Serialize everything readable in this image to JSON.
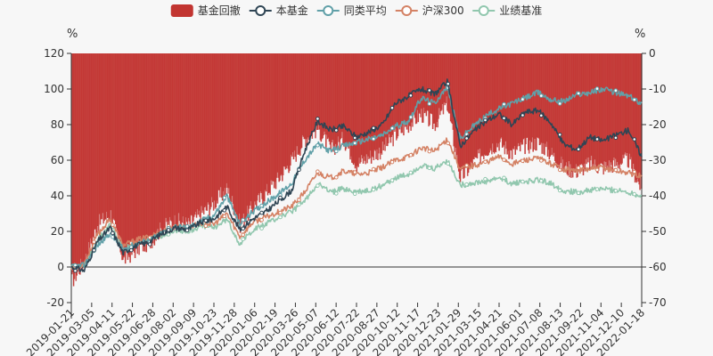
{
  "chart_data": {
    "type": "line",
    "title": "",
    "left_axis": {
      "unit": "%",
      "min": -20,
      "max": 120,
      "ticks": [
        -20,
        0,
        20,
        40,
        60,
        80,
        100,
        120
      ]
    },
    "right_axis": {
      "unit": "%",
      "min": -70,
      "max": 0,
      "ticks": [
        -70,
        -60,
        -50,
        -40,
        -30,
        -20,
        -10,
        0
      ]
    },
    "legend": [
      {
        "name": "基金回撤",
        "color": "#c23531",
        "shape": "rect"
      },
      {
        "name": "本基金",
        "color": "#2f4554",
        "shape": "circle"
      },
      {
        "name": "同类平均",
        "color": "#61a0a8",
        "shape": "circle"
      },
      {
        "name": "沪深300",
        "color": "#d48265",
        "shape": "circle"
      },
      {
        "name": "业绩基准",
        "color": "#91c7ae",
        "shape": "circle"
      }
    ],
    "x_labels": [
      "2019-01-21",
      "2019-03-05",
      "2019-04-11",
      "2019-05-22",
      "2019-06-28",
      "2019-08-02",
      "2019-09-09",
      "2019-10-23",
      "2019-11-28",
      "2020-01-06",
      "2020-02-19",
      "2020-03-26",
      "2020-05-07",
      "2020-06-12",
      "2020-07-22",
      "2020-08-27",
      "2020-10-12",
      "2020-11-17",
      "2020-12-23",
      "2021-01-29",
      "2021-03-15",
      "2021-04-21",
      "2021-06-01",
      "2021-07-08",
      "2021-08-13",
      "2021-09-22",
      "2021-11-04",
      "2021-12-10",
      "2022-01-18"
    ],
    "series": [
      {
        "name": "本基金",
        "color": "#2f4554",
        "values": [
          0,
          -2,
          14,
          22,
          8,
          12,
          14,
          19,
          22,
          21,
          25,
          27,
          34,
          21,
          27,
          31,
          37,
          43,
          65,
          82,
          77,
          79,
          73,
          76,
          80,
          92,
          96,
          100,
          97,
          104,
          68,
          76,
          82,
          86,
          80,
          87,
          88,
          81,
          69,
          66,
          73,
          71,
          74,
          77,
          62
        ]
      },
      {
        "name": "同类平均",
        "color": "#61a0a8",
        "values": [
          0,
          1,
          12,
          19,
          10,
          13,
          15,
          19,
          23,
          22,
          26,
          29,
          40,
          24,
          31,
          36,
          41,
          47,
          60,
          69,
          65,
          68,
          70,
          72,
          74,
          79,
          82,
          95,
          92,
          101,
          72,
          79,
          85,
          89,
          92,
          95,
          98,
          94,
          93,
          97,
          98,
          100,
          98,
          96,
          92
        ]
      },
      {
        "name": "沪深300",
        "color": "#d48265",
        "values": [
          0,
          2,
          18,
          27,
          12,
          15,
          17,
          20,
          23,
          22,
          25,
          24,
          30,
          17,
          25,
          28,
          31,
          34,
          42,
          53,
          50,
          54,
          52,
          53,
          56,
          60,
          62,
          67,
          65,
          72,
          55,
          57,
          59,
          62,
          58,
          60,
          61,
          58,
          55,
          54,
          55,
          56,
          54,
          53,
          51
        ]
      },
      {
        "name": "业绩基准",
        "color": "#91c7ae",
        "values": [
          0,
          1,
          15,
          24,
          10,
          13,
          15,
          18,
          21,
          20,
          23,
          22,
          27,
          13,
          21,
          24,
          28,
          31,
          37,
          47,
          42,
          44,
          42,
          43,
          46,
          50,
          52,
          57,
          55,
          60,
          46,
          47,
          48,
          50,
          47,
          48,
          49,
          47,
          43,
          42,
          43,
          44,
          43,
          42,
          40
        ]
      }
    ],
    "drawdown": {
      "name": "基金回撤",
      "color": "#c23531",
      "axis": "right",
      "values": [
        -64,
        -58,
        -48,
        -45,
        -58,
        -55,
        -53,
        -49,
        -47,
        -48,
        -45,
        -42,
        -38,
        -48,
        -43,
        -39,
        -35,
        -30,
        -24,
        -21,
        -27,
        -24,
        -31,
        -29,
        -27,
        -23,
        -20,
        -17,
        -20,
        -14,
        -35,
        -31,
        -27,
        -25,
        -28,
        -26,
        -25,
        -28,
        -32,
        -33,
        -31,
        -32,
        -31,
        -30,
        -38
      ]
    }
  }
}
